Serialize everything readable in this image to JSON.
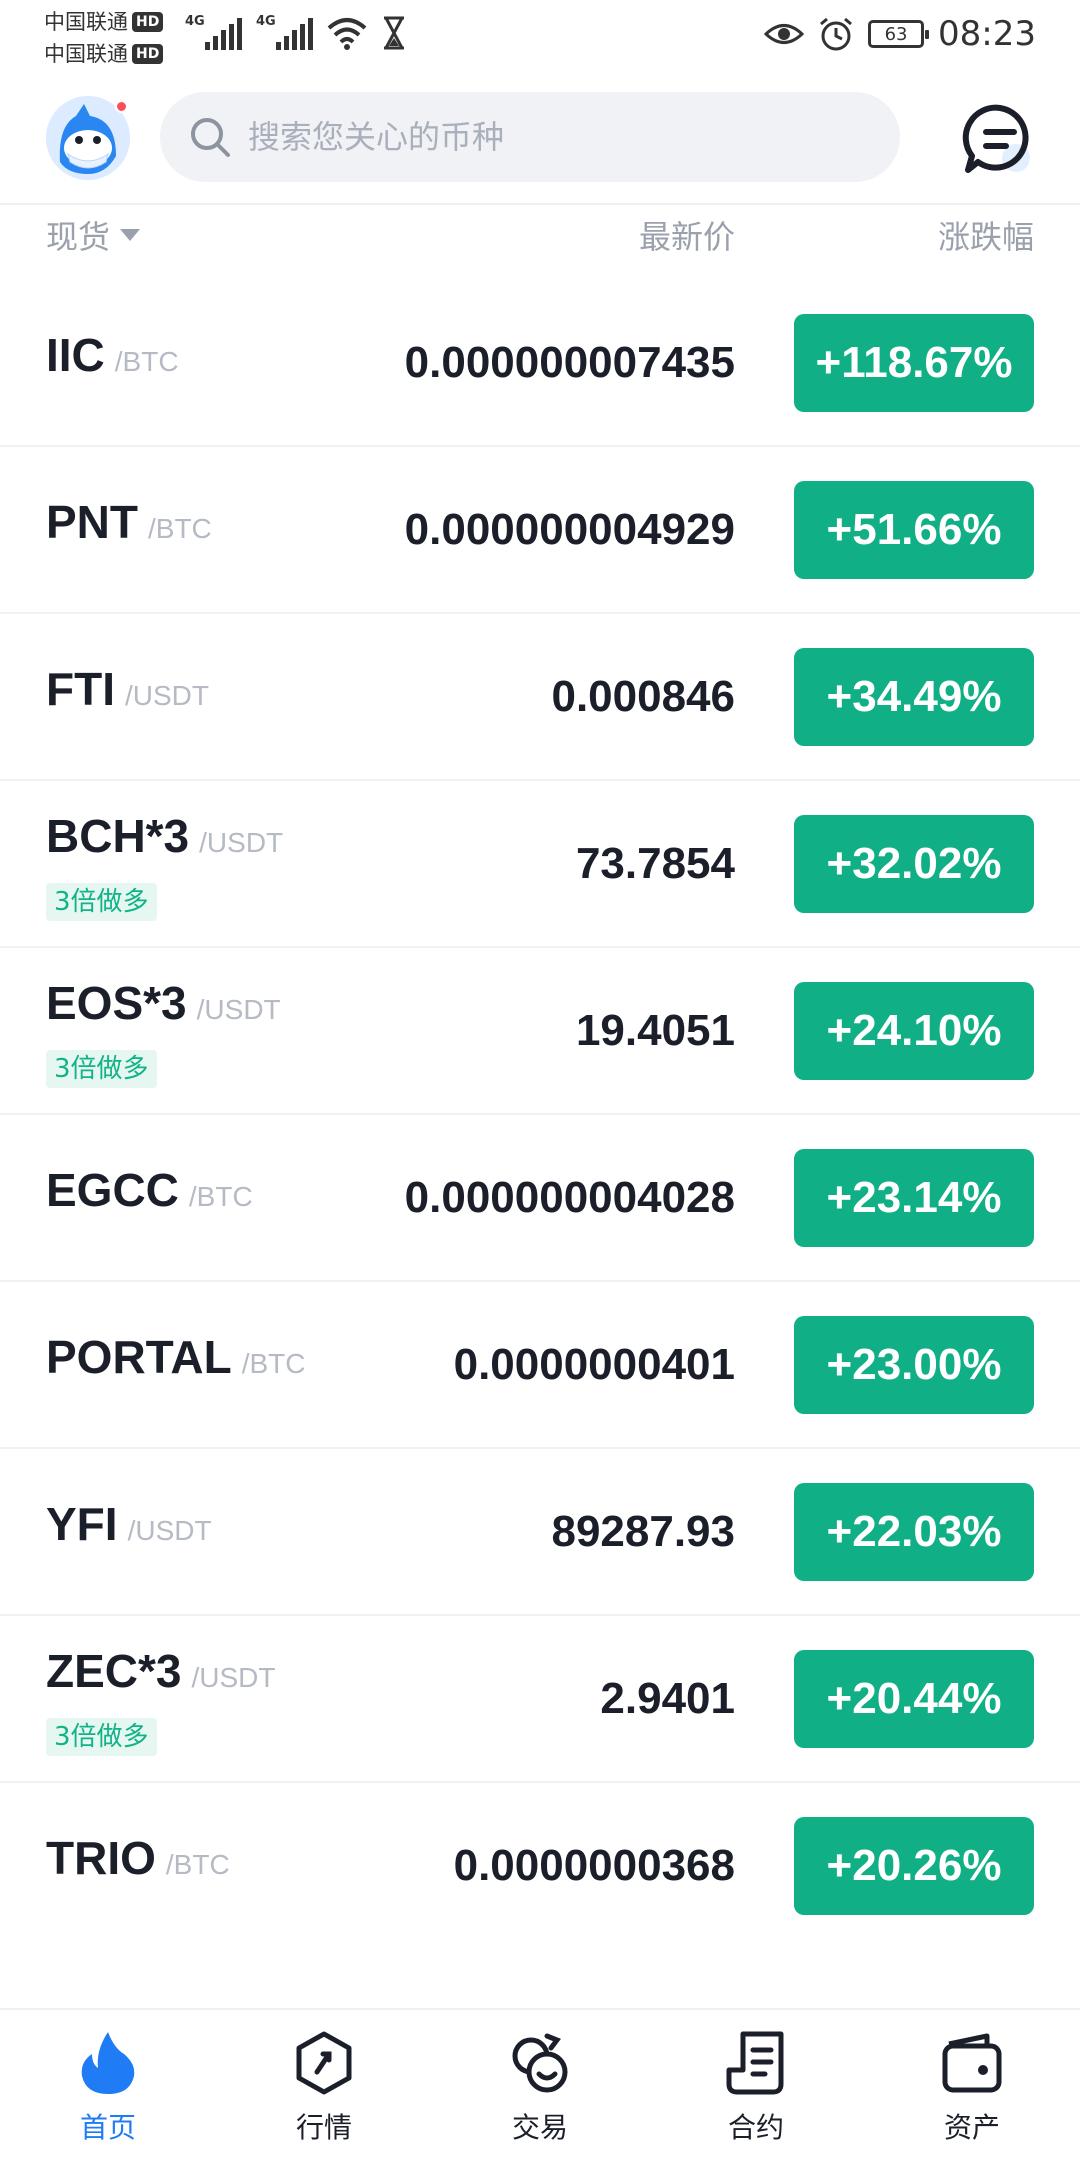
{
  "status_bar": {
    "carrier1": "中国联通",
    "carrier2": "中国联通",
    "hd": "HD",
    "net1": "4G",
    "net2": "4G",
    "battery": "63",
    "time": "08:23"
  },
  "header": {
    "search_placeholder": "搜索您关心的币种"
  },
  "columns": {
    "spot": "现货",
    "price": "最新价",
    "change": "涨跌幅"
  },
  "rows": [
    {
      "base": "IIC",
      "quote": "/BTC",
      "tag": "",
      "price": "0.000000007435",
      "change": "+118.67%"
    },
    {
      "base": "PNT",
      "quote": "/BTC",
      "tag": "",
      "price": "0.000000004929",
      "change": "+51.66%"
    },
    {
      "base": "FTI",
      "quote": "/USDT",
      "tag": "",
      "price": "0.000846",
      "change": "+34.49%"
    },
    {
      "base": "BCH*3",
      "quote": "/USDT",
      "tag": "3倍做多",
      "price": "73.7854",
      "change": "+32.02%"
    },
    {
      "base": "EOS*3",
      "quote": "/USDT",
      "tag": "3倍做多",
      "price": "19.4051",
      "change": "+24.10%"
    },
    {
      "base": "EGCC",
      "quote": "/BTC",
      "tag": "",
      "price": "0.000000004028",
      "change": "+23.14%"
    },
    {
      "base": "PORTAL",
      "quote": "/BTC",
      "tag": "",
      "price": "0.0000000401",
      "change": "+23.00%"
    },
    {
      "base": "YFI",
      "quote": "/USDT",
      "tag": "",
      "price": "89287.93",
      "change": "+22.03%"
    },
    {
      "base": "ZEC*3",
      "quote": "/USDT",
      "tag": "3倍做多",
      "price": "2.9401",
      "change": "+20.44%"
    },
    {
      "base": "TRIO",
      "quote": "/BTC",
      "tag": "",
      "price": "0.0000000368",
      "change": "+20.26%"
    }
  ],
  "nav": [
    {
      "label": "首页",
      "icon": "flame-icon",
      "active": true
    },
    {
      "label": "行情",
      "icon": "market-icon",
      "active": false
    },
    {
      "label": "交易",
      "icon": "trade-icon",
      "active": false
    },
    {
      "label": "合约",
      "icon": "contract-icon",
      "active": false
    },
    {
      "label": "资产",
      "icon": "wallet-icon",
      "active": false
    }
  ],
  "colors": {
    "up": "#11af85",
    "accent": "#1f7cf5"
  }
}
